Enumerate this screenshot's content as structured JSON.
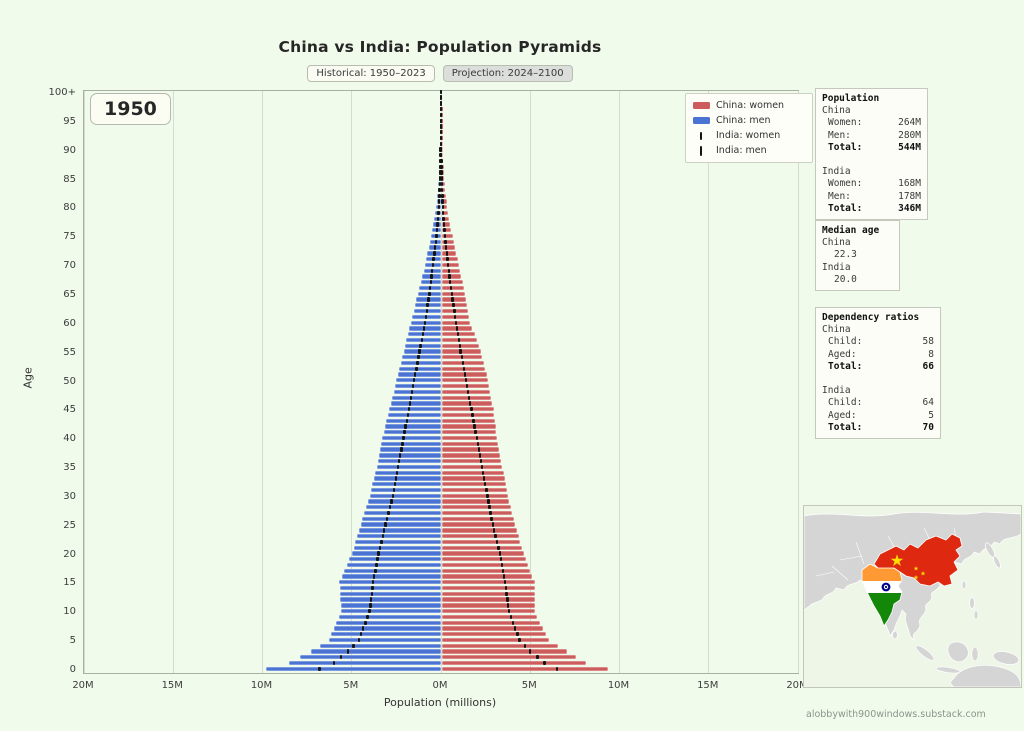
{
  "title": "China vs India: Population Pyramids",
  "badges": {
    "historical": "Historical: 1950–2023",
    "projection": "Projection: 2024–2100"
  },
  "year_label": "1950",
  "legend": {
    "items": [
      {
        "label": "China: women",
        "marker": "bar",
        "color": "#cd5c5c"
      },
      {
        "label": "China: men",
        "marker": "bar",
        "color": "#4a73d3"
      },
      {
        "label": "India: women",
        "marker": "tick",
        "color": "#141414"
      },
      {
        "label": "India: men",
        "marker": "tick",
        "color": "#141414"
      }
    ]
  },
  "chart_data": {
    "type": "bar",
    "subtype": "population-pyramid",
    "year": 1950,
    "unit": "millions per single year of age",
    "orientation": "horizontal, men left / women right of center",
    "age_anchors": [
      0,
      1,
      2,
      3,
      4,
      5,
      10,
      15,
      20,
      25,
      30,
      35,
      40,
      45,
      50,
      55,
      60,
      65,
      70,
      75,
      80,
      85,
      90,
      95,
      100
    ],
    "series": [
      {
        "name": "China: women",
        "side": "right",
        "style": "bar",
        "color": "#cd5c5c",
        "values": [
          9.3,
          8.1,
          7.5,
          7.0,
          6.5,
          6.0,
          5.2,
          5.2,
          4.6,
          4.1,
          3.7,
          3.4,
          3.1,
          2.9,
          2.6,
          2.2,
          1.6,
          1.3,
          0.95,
          0.6,
          0.3,
          0.13,
          0.05,
          0.01,
          0
        ]
      },
      {
        "name": "China: men",
        "side": "left",
        "style": "bar",
        "color": "#4a73d3",
        "values": [
          9.8,
          8.5,
          7.9,
          7.3,
          6.8,
          6.3,
          5.6,
          5.7,
          5.0,
          4.5,
          4.0,
          3.6,
          3.3,
          2.9,
          2.5,
          2.1,
          1.7,
          1.3,
          0.9,
          0.55,
          0.28,
          0.12,
          0.04,
          0.01,
          0
        ]
      },
      {
        "name": "India: women",
        "side": "right",
        "style": "tick",
        "color": "#141414",
        "values": [
          6.5,
          5.8,
          5.4,
          5.0,
          4.7,
          4.4,
          3.8,
          3.6,
          3.3,
          2.9,
          2.6,
          2.3,
          2.0,
          1.7,
          1.4,
          1.1,
          0.85,
          0.6,
          0.4,
          0.22,
          0.1,
          0.04,
          0.01,
          0,
          0
        ]
      },
      {
        "name": "India: men",
        "side": "left",
        "style": "tick",
        "color": "#141414",
        "values": [
          6.8,
          6.0,
          5.6,
          5.2,
          4.9,
          4.6,
          4.0,
          3.8,
          3.5,
          3.1,
          2.7,
          2.4,
          2.1,
          1.8,
          1.5,
          1.2,
          0.9,
          0.65,
          0.45,
          0.25,
          0.12,
          0.05,
          0.02,
          0,
          0
        ]
      }
    ],
    "x_axis": {
      "label": "Population (millions)",
      "xlim_M": [
        -20,
        20
      ],
      "tick_values_M": [
        -20,
        -15,
        -10,
        -5,
        0,
        5,
        10,
        15,
        20
      ],
      "tick_labels": [
        "20M",
        "15M",
        "10M",
        "5M",
        "0M",
        "5M",
        "10M",
        "15M",
        "20M"
      ],
      "grid": true
    },
    "y_axis": {
      "label": "Age",
      "range": [
        0,
        100
      ],
      "tick_labels": [
        "0",
        "5",
        "10",
        "15",
        "20",
        "25",
        "30",
        "35",
        "40",
        "45",
        "50",
        "55",
        "60",
        "65",
        "70",
        "75",
        "80",
        "85",
        "90",
        "95",
        "100+"
      ]
    }
  },
  "panels": {
    "population": {
      "title": "Population",
      "lines": [
        {
          "text": "China"
        },
        {
          "label": "Women:",
          "value": "264M"
        },
        {
          "label": "Men:",
          "value": "280M"
        },
        {
          "label": "Total:",
          "value": "544M",
          "bold": true
        },
        {
          "spacer": true
        },
        {
          "text": "India"
        },
        {
          "label": "Women:",
          "value": "168M"
        },
        {
          "label": "Men:",
          "value": "178M"
        },
        {
          "label": "Total:",
          "value": "346M",
          "bold": true
        }
      ]
    },
    "median_age": {
      "title": "Median age",
      "lines": [
        {
          "text": "China"
        },
        {
          "text": "22.3",
          "indent": true
        },
        {
          "text": "India"
        },
        {
          "text": "20.0",
          "indent": true
        }
      ]
    },
    "dependency": {
      "title": "Dependency ratios",
      "lines": [
        {
          "text": "China"
        },
        {
          "label": "Child:",
          "value": "58"
        },
        {
          "label": "Aged:",
          "value": "8"
        },
        {
          "label": "Total:",
          "value": "66",
          "bold": true
        },
        {
          "spacer": true
        },
        {
          "text": "India"
        },
        {
          "label": "Child:",
          "value": "64"
        },
        {
          "label": "Aged:",
          "value": "5"
        },
        {
          "label": "Total:",
          "value": "70",
          "bold": true
        }
      ]
    }
  },
  "map_inset": {
    "region": "Asia",
    "highlights": [
      {
        "country": "China",
        "style": "china-flag"
      },
      {
        "country": "India",
        "style": "india-flag"
      }
    ]
  },
  "watermark": "alobbywith900windows.substack.com",
  "colors": {
    "background": "#f1fbeb",
    "china_women_bar": "#cd5c5c",
    "china_men_bar": "#4a73d3",
    "india_marker": "#141414",
    "china_flag_red": "#de2910",
    "china_flag_star": "#ffde00",
    "india_saffron": "#ff9933",
    "india_green": "#138808",
    "india_chakra_navy": "#000088",
    "map_land": "#d5d5d5"
  }
}
